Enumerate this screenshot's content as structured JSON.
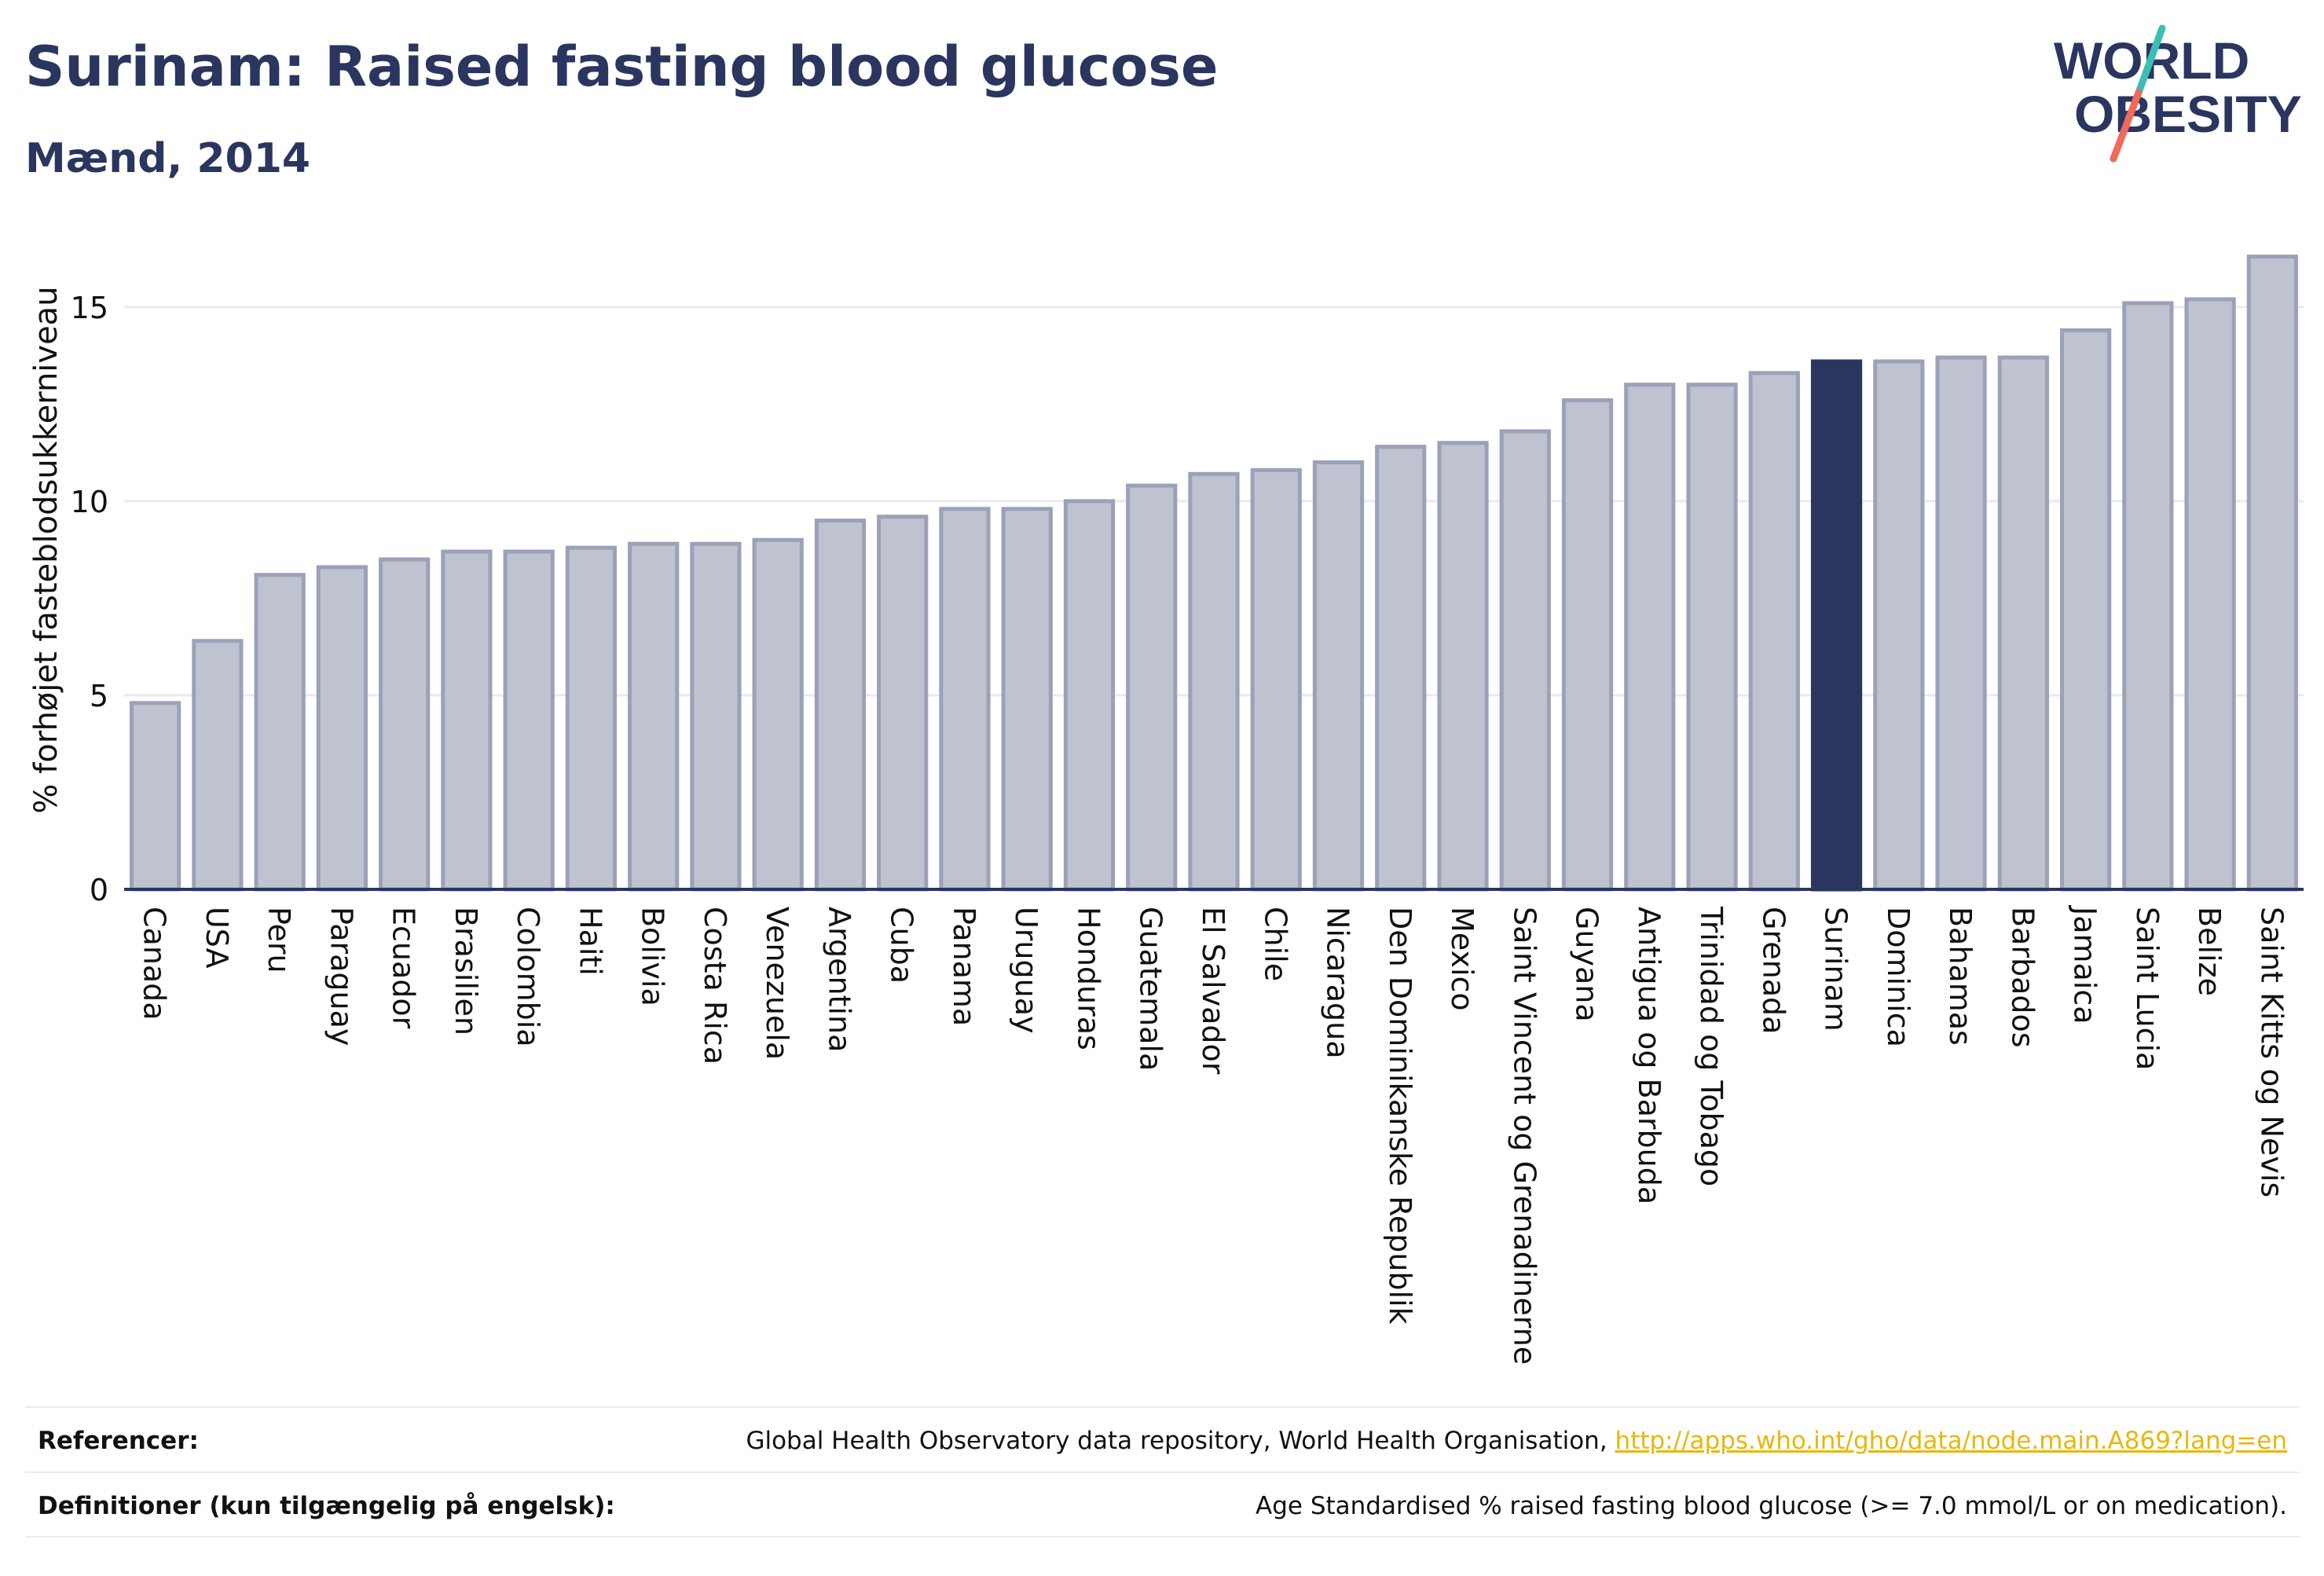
{
  "header": {
    "title": "Surinam: Raised fasting blood glucose",
    "subtitle": "Mænd, 2014"
  },
  "logo": {
    "line1": "WORLD",
    "line2": "OBESITY"
  },
  "colors": {
    "highlight_bar": "#2a3560",
    "default_bar": "#bfc3d0",
    "bar_border": "#9ba1b8",
    "axis": "#2a3560",
    "grid": "#e8eaef"
  },
  "chart_data": {
    "type": "bar",
    "ylabel": "% forhøjet fasteblodsukkerniveau",
    "ylim": [
      0,
      17
    ],
    "yticks": [
      0,
      5,
      10,
      15
    ],
    "grid": true,
    "highlight": "Surinam",
    "categories": [
      "Canada",
      "USA",
      "Peru",
      "Paraguay",
      "Ecuador",
      "Brasilien",
      "Colombia",
      "Haiti",
      "Bolivia",
      "Costa Rica",
      "Venezuela",
      "Argentina",
      "Cuba",
      "Panama",
      "Uruguay",
      "Honduras",
      "Guatemala",
      "El Salvador",
      "Chile",
      "Nicaragua",
      "Den Dominikanske Republik",
      "Mexico",
      "Saint Vincent og Grenadinerne",
      "Guyana",
      "Antigua og Barbuda",
      "Trinidad og Tobago",
      "Grenada",
      "Surinam",
      "Dominica",
      "Bahamas",
      "Barbados",
      "Jamaica",
      "Saint Lucia",
      "Belize",
      "Saint Kitts og Nevis"
    ],
    "values": [
      4.8,
      6.4,
      8.1,
      8.3,
      8.5,
      8.7,
      8.7,
      8.8,
      8.9,
      8.9,
      9.0,
      9.5,
      9.6,
      9.8,
      9.8,
      10.0,
      10.4,
      10.7,
      10.8,
      11.0,
      11.4,
      11.5,
      11.8,
      12.6,
      13.0,
      13.0,
      13.3,
      13.6,
      13.6,
      13.7,
      13.7,
      14.4,
      15.1,
      15.2,
      16.3
    ]
  },
  "footer": {
    "references_label": "Referencer:",
    "references_text": "Global Health Observatory data repository, World Health Organisation, ",
    "references_link": "http://apps.who.int/gho/data/node.main.A869?lang=en",
    "definitions_label": "Definitioner (kun tilgængelig på engelsk):",
    "definitions_text": "Age Standardised % raised fasting blood glucose (>= 7.0 mmol/L or on medication)."
  }
}
